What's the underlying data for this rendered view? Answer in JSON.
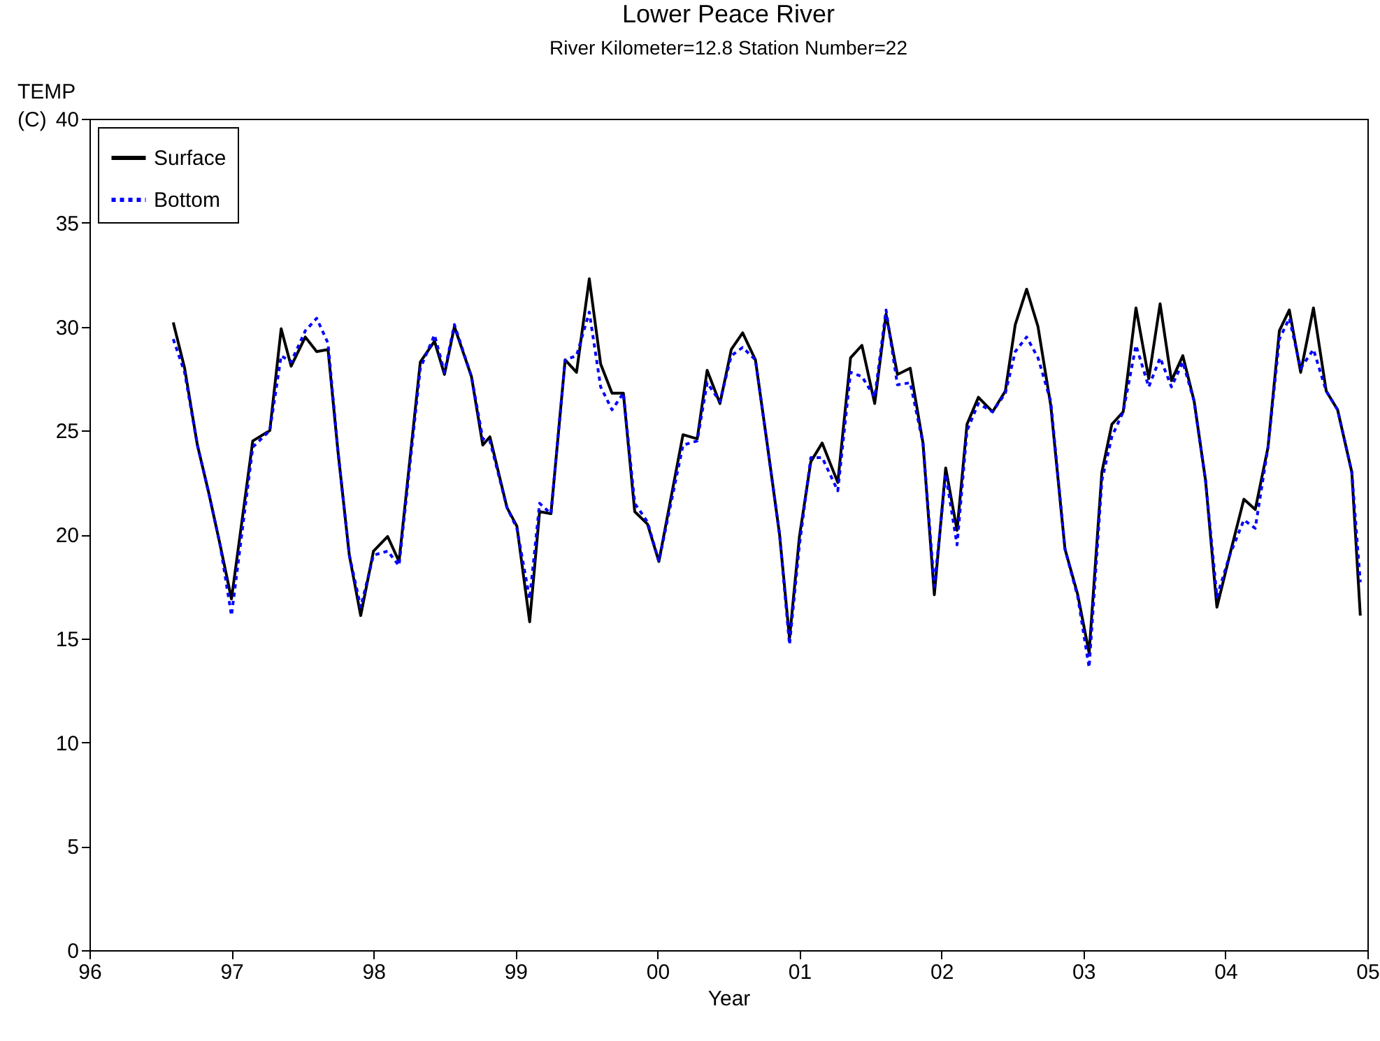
{
  "chart_data": {
    "type": "line",
    "title": "Lower Peace River",
    "subtitle": "River Kilometer=12.8 Station Number=22",
    "xlabel": "Year",
    "ylabel": "TEMP (C)",
    "x": [
      1996.59,
      1996.67,
      1996.76,
      1996.84,
      1996.92,
      1997.0,
      1997.15,
      1997.27,
      1997.35,
      1997.42,
      1997.52,
      1997.6,
      1997.68,
      1997.75,
      1997.83,
      1997.91,
      1998.0,
      1998.1,
      1998.18,
      1998.33,
      1998.43,
      1998.5,
      1998.57,
      1998.69,
      1998.77,
      1998.82,
      1998.94,
      1999.01,
      1999.1,
      1999.17,
      1999.25,
      1999.35,
      1999.43,
      1999.52,
      1999.6,
      1999.68,
      1999.76,
      1999.84,
      1999.93,
      2000.01,
      2000.18,
      2000.28,
      2000.35,
      2000.44,
      2000.52,
      2000.6,
      2000.69,
      2000.77,
      2000.86,
      2000.93,
      2001.0,
      2001.08,
      2001.16,
      2001.27,
      2001.36,
      2001.44,
      2001.53,
      2001.61,
      2001.69,
      2001.78,
      2001.87,
      2001.95,
      2002.03,
      2002.11,
      2002.18,
      2002.26,
      2002.36,
      2002.45,
      2002.52,
      2002.6,
      2002.68,
      2002.77,
      2002.87,
      2002.96,
      2003.04,
      2003.13,
      2003.2,
      2003.28,
      2003.37,
      2003.46,
      2003.54,
      2003.62,
      2003.7,
      2003.78,
      2003.86,
      2003.94,
      2004.03,
      2004.13,
      2004.21,
      2004.3,
      2004.38,
      2004.45,
      2004.53,
      2004.62,
      2004.71,
      2004.79,
      2004.89,
      2004.95
    ],
    "series": [
      {
        "name": "Surface",
        "color": "#000000",
        "line_style": "solid",
        "values": [
          30.2,
          28.0,
          24.3,
          22.0,
          19.5,
          16.9,
          24.5,
          25.0,
          29.9,
          28.1,
          29.5,
          28.8,
          28.9,
          24.0,
          19.0,
          16.1,
          19.2,
          19.9,
          18.7,
          28.3,
          29.3,
          27.7,
          30.0,
          27.6,
          24.3,
          24.7,
          21.3,
          20.4,
          15.8,
          21.1,
          21.0,
          28.4,
          27.8,
          32.3,
          28.2,
          26.8,
          26.8,
          21.1,
          20.5,
          18.7,
          24.8,
          24.6,
          27.9,
          26.3,
          28.9,
          29.7,
          28.4,
          24.5,
          20.0,
          15.0,
          19.9,
          23.5,
          24.4,
          22.5,
          28.5,
          29.1,
          26.3,
          30.6,
          27.7,
          28.0,
          24.4,
          17.1,
          23.2,
          20.2,
          25.3,
          26.6,
          25.9,
          26.9,
          30.1,
          31.8,
          30.0,
          26.2,
          19.3,
          17.1,
          14.3,
          23.0,
          25.3,
          25.9,
          30.9,
          27.5,
          31.1,
          27.4,
          28.6,
          26.4,
          22.6,
          16.5,
          19.0,
          21.7,
          21.2,
          24.2,
          29.8,
          30.8,
          27.8,
          30.9,
          26.9,
          26.0,
          23.0,
          16.1
        ]
      },
      {
        "name": "Bottom",
        "color": "#0000ff",
        "line_style": "dotted",
        "values": [
          29.4,
          27.8,
          24.3,
          22.0,
          19.5,
          16.1,
          24.2,
          25.0,
          28.6,
          28.3,
          29.8,
          30.4,
          29.2,
          24.0,
          19.0,
          16.5,
          19.0,
          19.2,
          18.5,
          28.0,
          29.6,
          27.8,
          30.1,
          27.6,
          24.6,
          24.5,
          21.3,
          20.3,
          16.9,
          21.5,
          21.0,
          28.4,
          28.6,
          30.7,
          27.1,
          26.0,
          26.8,
          21.5,
          20.6,
          18.7,
          24.3,
          24.5,
          27.3,
          26.4,
          28.6,
          29.0,
          28.4,
          24.5,
          20.0,
          14.7,
          19.5,
          23.7,
          23.7,
          22.1,
          27.8,
          27.6,
          26.6,
          30.8,
          27.2,
          27.3,
          24.4,
          17.5,
          22.9,
          19.5,
          25.0,
          26.3,
          25.9,
          26.8,
          28.8,
          29.5,
          28.5,
          26.4,
          19.3,
          17.0,
          13.6,
          22.6,
          24.7,
          25.9,
          29.1,
          27.1,
          28.5,
          27.1,
          28.3,
          26.4,
          22.6,
          17.0,
          19.0,
          20.7,
          20.3,
          24.2,
          29.4,
          30.4,
          28.0,
          28.9,
          26.9,
          26.0,
          23.0,
          17.7
        ]
      }
    ],
    "xlim": [
      1996,
      2005
    ],
    "xticks": [
      {
        "value": 1996,
        "label": "96"
      },
      {
        "value": 1997,
        "label": "97"
      },
      {
        "value": 1998,
        "label": "98"
      },
      {
        "value": 1999,
        "label": "99"
      },
      {
        "value": 2000,
        "label": "00"
      },
      {
        "value": 2001,
        "label": "01"
      },
      {
        "value": 2002,
        "label": "02"
      },
      {
        "value": 2003,
        "label": "03"
      },
      {
        "value": 2004,
        "label": "04"
      },
      {
        "value": 2005,
        "label": "05"
      }
    ],
    "ylim": [
      0,
      40
    ],
    "yticks": [
      0,
      5,
      10,
      15,
      20,
      25,
      30,
      35,
      40
    ],
    "grid": false,
    "legend": "top left",
    "marker": "none"
  }
}
